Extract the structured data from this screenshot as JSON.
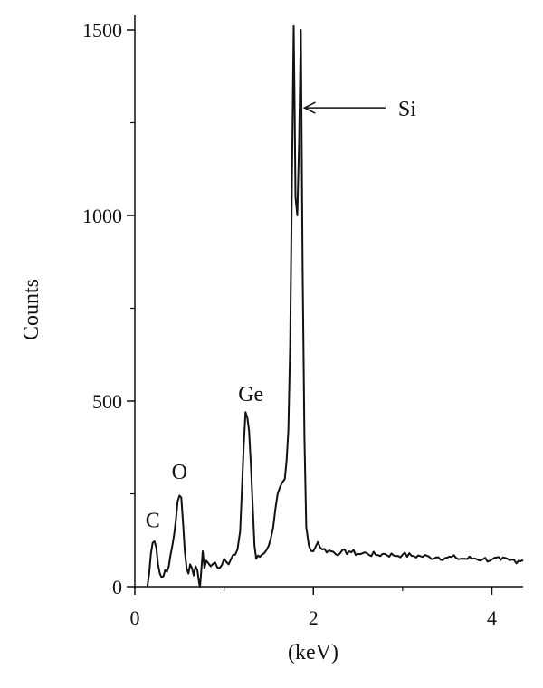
{
  "chart_data": {
    "type": "line",
    "xlabel": "(keV)",
    "ylabel": "Counts",
    "xlim": [
      0,
      4.35
    ],
    "ylim": [
      0,
      1500
    ],
    "x_ticks": [
      0,
      2,
      4
    ],
    "y_ticks": [
      0,
      500,
      1000,
      1500
    ],
    "grid": false,
    "line_color": "#111111",
    "series": [
      {
        "values": [
          [
            0.14,
            0
          ],
          [
            0.16,
            35
          ],
          [
            0.18,
            90
          ],
          [
            0.2,
            118
          ],
          [
            0.22,
            122
          ],
          [
            0.24,
            105
          ],
          [
            0.26,
            60
          ],
          [
            0.28,
            35
          ],
          [
            0.3,
            25
          ],
          [
            0.32,
            28
          ],
          [
            0.34,
            45
          ],
          [
            0.36,
            40
          ],
          [
            0.38,
            55
          ],
          [
            0.4,
            85
          ],
          [
            0.42,
            110
          ],
          [
            0.44,
            140
          ],
          [
            0.46,
            180
          ],
          [
            0.48,
            230
          ],
          [
            0.5,
            245
          ],
          [
            0.52,
            240
          ],
          [
            0.54,
            170
          ],
          [
            0.56,
            95
          ],
          [
            0.58,
            50
          ],
          [
            0.6,
            35
          ],
          [
            0.62,
            60
          ],
          [
            0.64,
            50
          ],
          [
            0.66,
            30
          ],
          [
            0.68,
            55
          ],
          [
            0.7,
            45
          ],
          [
            0.72,
            10
          ],
          [
            0.73,
            0
          ],
          [
            0.74,
            30
          ],
          [
            0.76,
            95
          ],
          [
            0.78,
            50
          ],
          [
            0.8,
            70
          ],
          [
            0.85,
            55
          ],
          [
            0.9,
            65
          ],
          [
            0.95,
            50
          ],
          [
            1.0,
            75
          ],
          [
            1.05,
            60
          ],
          [
            1.1,
            85
          ],
          [
            1.15,
            100
          ],
          [
            1.18,
            150
          ],
          [
            1.2,
            260
          ],
          [
            1.22,
            380
          ],
          [
            1.24,
            470
          ],
          [
            1.26,
            455
          ],
          [
            1.28,
            420
          ],
          [
            1.3,
            330
          ],
          [
            1.32,
            220
          ],
          [
            1.34,
            110
          ],
          [
            1.36,
            75
          ],
          [
            1.4,
            80
          ],
          [
            1.45,
            90
          ],
          [
            1.5,
            110
          ],
          [
            1.55,
            160
          ],
          [
            1.6,
            250
          ],
          [
            1.65,
            280
          ],
          [
            1.68,
            290
          ],
          [
            1.7,
            340
          ],
          [
            1.72,
            420
          ],
          [
            1.74,
            650
          ],
          [
            1.76,
            1100
          ],
          [
            1.78,
            1510
          ],
          [
            1.79,
            1300
          ],
          [
            1.8,
            1050
          ],
          [
            1.82,
            1000
          ],
          [
            1.84,
            1200
          ],
          [
            1.86,
            1500
          ],
          [
            1.88,
            850
          ],
          [
            1.9,
            400
          ],
          [
            1.92,
            160
          ],
          [
            1.95,
            110
          ],
          [
            2.0,
            95
          ],
          [
            2.05,
            120
          ],
          [
            2.1,
            100
          ],
          [
            2.2,
            95
          ],
          [
            2.3,
            90
          ],
          [
            2.4,
            95
          ],
          [
            2.5,
            88
          ],
          [
            2.6,
            90
          ],
          [
            2.7,
            85
          ],
          [
            2.8,
            88
          ],
          [
            2.9,
            84
          ],
          [
            3.0,
            86
          ],
          [
            3.1,
            83
          ],
          [
            3.2,
            82
          ],
          [
            3.3,
            80
          ],
          [
            3.4,
            79
          ],
          [
            3.5,
            78
          ],
          [
            3.6,
            77
          ],
          [
            3.7,
            75
          ],
          [
            3.8,
            76
          ],
          [
            3.9,
            74
          ],
          [
            4.0,
            73
          ],
          [
            4.1,
            72
          ],
          [
            4.2,
            71
          ],
          [
            4.3,
            70
          ],
          [
            4.35,
            72
          ]
        ]
      }
    ],
    "annotations": [
      {
        "text": "C",
        "x": 0.2,
        "y": 160
      },
      {
        "text": "O",
        "x": 0.5,
        "y": 290
      },
      {
        "text": "Ge",
        "x": 1.3,
        "y": 500
      },
      {
        "text": "Si",
        "x": 2.95,
        "y": 1290,
        "arrow_to": {
          "x": 1.9,
          "y": 1290
        }
      }
    ]
  }
}
